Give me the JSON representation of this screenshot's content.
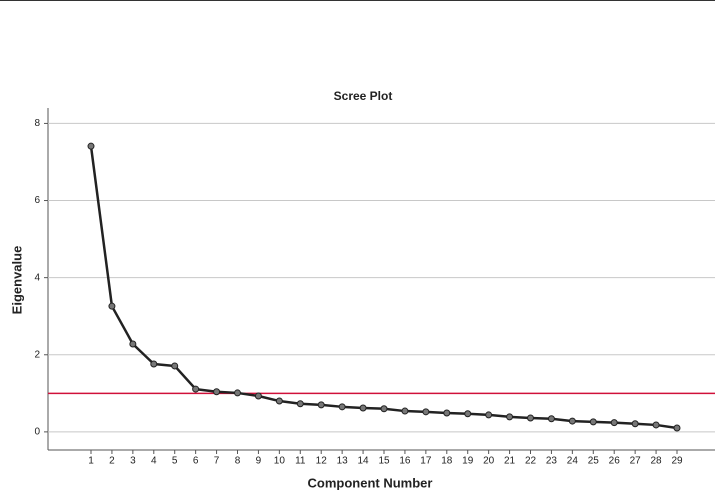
{
  "chart_data": {
    "type": "line",
    "title": "Scree Plot",
    "x_label": "Component Number",
    "y_label": "Eigenvalue",
    "categories": [
      "1",
      "2",
      "3",
      "4",
      "5",
      "6",
      "7",
      "8",
      "9",
      "10",
      "11",
      "12",
      "13",
      "14",
      "15",
      "16",
      "17",
      "18",
      "19",
      "20",
      "21",
      "22",
      "23",
      "24",
      "25",
      "26",
      "27",
      "28",
      "29"
    ],
    "series": [
      {
        "name": "Eigenvalue",
        "color": "#222222",
        "values": [
          7.41,
          3.26,
          2.28,
          1.76,
          1.71,
          1.11,
          1.04,
          1.01,
          0.93,
          0.8,
          0.73,
          0.7,
          0.65,
          0.62,
          0.6,
          0.54,
          0.52,
          0.49,
          0.47,
          0.44,
          0.39,
          0.36,
          0.34,
          0.28,
          0.26,
          0.24,
          0.21,
          0.18,
          0.1
        ]
      }
    ],
    "reference_line": {
      "value": 1,
      "color": "#d0103a"
    },
    "ylim": [
      -0.47,
      8.4
    ],
    "yticks": [
      0,
      2,
      4,
      6,
      8
    ],
    "grid": true
  }
}
